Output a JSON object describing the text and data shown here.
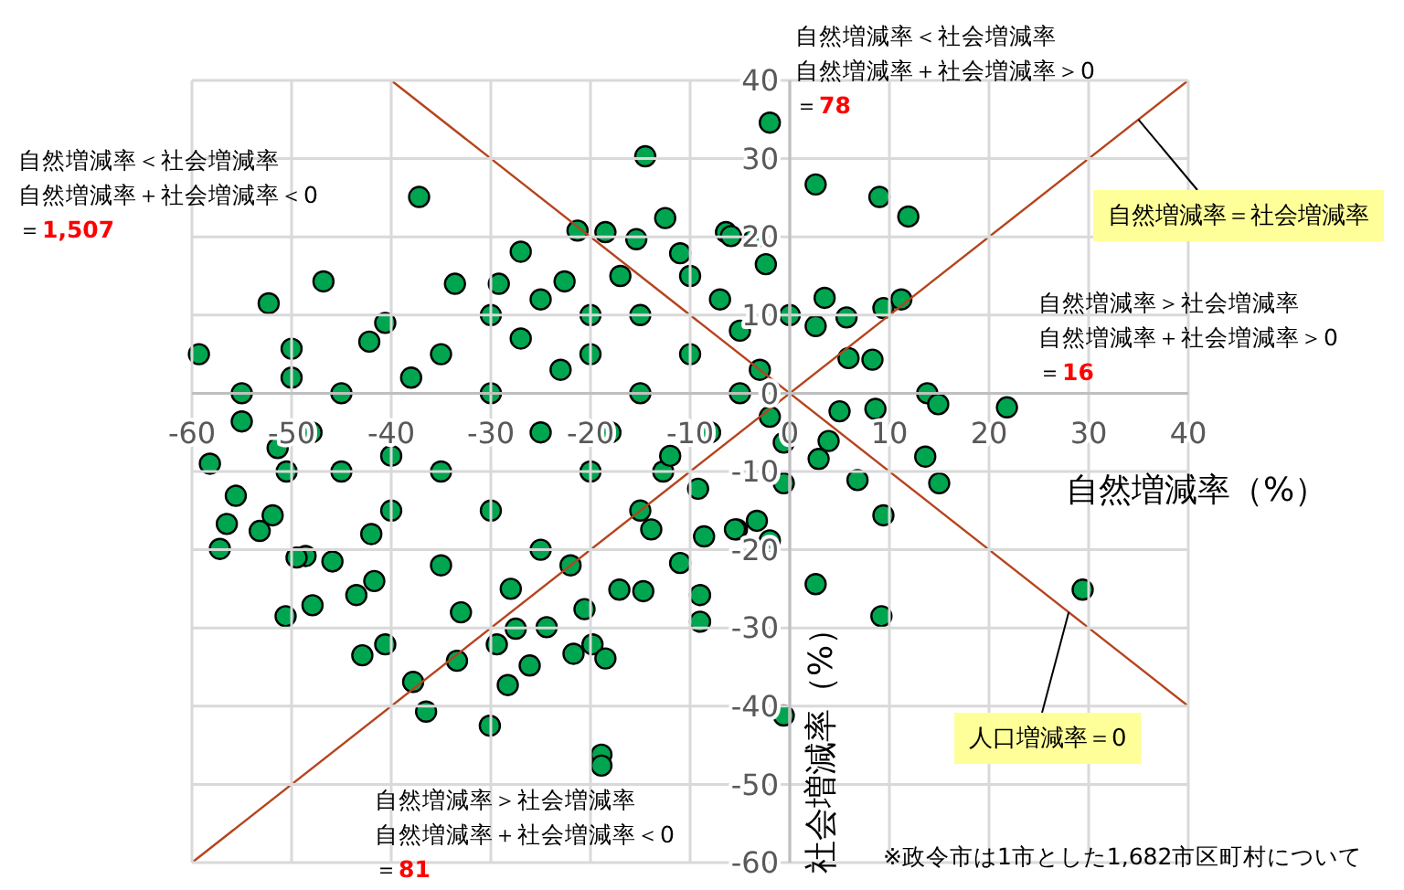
{
  "chart_data": {
    "type": "scatter",
    "xlabel": "自然増減率（%）",
    "ylabel": "社会増減率（%）",
    "xlim": [
      -60,
      40
    ],
    "ylim": [
      -60,
      40
    ],
    "xticks": [
      -60,
      -50,
      -40,
      -30,
      -20,
      -10,
      0,
      10,
      20,
      30,
      40
    ],
    "yticks": [
      -60,
      -50,
      -40,
      -30,
      -20,
      -10,
      0,
      10,
      20,
      30,
      40
    ],
    "grid": true,
    "series": [
      {
        "marker": "circle",
        "color": "#00a550",
        "x": [
          -2.0,
          -14.5,
          -37.2,
          2.6,
          -12.5,
          -21.3,
          -18.5,
          -15.4,
          -27,
          -46.8,
          -52.3,
          -33.6,
          -59.3,
          -50,
          -40.6,
          -42.2,
          -6.4,
          -3.5,
          -2.4,
          -29.2,
          -22.6,
          -11,
          11.9,
          9,
          3.5,
          11.2,
          9.4,
          5.7,
          8.3,
          5.9,
          13.8,
          14.9,
          21.8,
          8.6,
          -5.9,
          2.6,
          5,
          29.4,
          9.2,
          2.6,
          -0.6,
          9.4,
          13.6,
          15,
          6.8,
          -0.6,
          -3.3,
          -5.3,
          -2,
          2.9,
          -0.6,
          3.9,
          -58.2,
          -55,
          -55.6,
          -56.5,
          -57.2,
          -53.2,
          -51.9,
          -50.6,
          -47.9,
          -48.6,
          -45.9,
          -42.9,
          -37.8,
          -36.5,
          -30.1,
          -28.3,
          -26.1,
          -21.7,
          -19.8,
          -18.5,
          -18.9,
          -18.9,
          -9,
          -9,
          -11,
          -14.7,
          -13.9,
          -8.6,
          -5.5,
          -9.2,
          -12.7,
          -40.6,
          -33.4,
          -29.4,
          -24.4,
          -27.5,
          -20.6,
          -17.1,
          -43.5,
          -41.7,
          -49.5,
          -50.5,
          -51.4,
          -45,
          -40,
          -35,
          -30,
          -25,
          -20,
          -15,
          -10,
          -35,
          -30,
          -25,
          -20,
          -15,
          -40,
          -45,
          -30,
          -20,
          -25,
          -15,
          -10,
          -5,
          -5,
          -8,
          -38,
          -28,
          -35,
          -22,
          -18,
          -12,
          -42,
          -48,
          -33,
          -23,
          -27,
          -17,
          -7,
          -3,
          0,
          -2,
          -50,
          -55
        ],
        "values": [
          34.6,
          30.3,
          25.1,
          26.7,
          22.4,
          20.8,
          20.6,
          19.7,
          18.1,
          14.3,
          11.5,
          14,
          5,
          5.7,
          9,
          6.6,
          20.6,
          19.9,
          16.5,
          14,
          14.3,
          17.9,
          22.6,
          25.1,
          12.2,
          12,
          10.9,
          9.7,
          4.3,
          4.5,
          0,
          -1.4,
          -1.8,
          -2,
          20.1,
          8.6,
          -2.3,
          -25.1,
          -28.5,
          -24.4,
          -41.2,
          -15.6,
          -8.1,
          -11.5,
          -11.1,
          -11.5,
          -16.3,
          -17.4,
          -18.8,
          -8.4,
          -6.3,
          -6.1,
          -9,
          -3.6,
          -13.1,
          -16.7,
          -19.9,
          -17.6,
          -15.6,
          -28.5,
          -27.1,
          -20.8,
          -21.5,
          -33.5,
          -36.9,
          -40.7,
          -42.5,
          -37.3,
          -34.8,
          -33.3,
          -32.1,
          -33.9,
          -46.2,
          -47.6,
          -25.8,
          -29.2,
          -21.7,
          -25.3,
          -17.4,
          -18.3,
          -17.4,
          -12.2,
          -10,
          -32.1,
          -34.2,
          -32.1,
          -29.9,
          -30.1,
          -27.6,
          -25.1,
          -25.8,
          -24,
          -21,
          -10,
          -7,
          0,
          -8,
          5,
          0,
          -5,
          5,
          0,
          5,
          -10,
          -15,
          -20,
          -10,
          -15,
          -15,
          -10,
          10,
          10,
          12,
          10,
          15,
          8,
          0,
          -5,
          2,
          -25,
          -22,
          -22,
          -5,
          -8,
          -18,
          -5,
          -28,
          3,
          7,
          15,
          12,
          3,
          10,
          -3,
          2,
          0
        ]
      },
      {
        "type": "line",
        "color": "#b5441e",
        "x": [
          -60,
          40
        ],
        "values": [
          -60,
          40
        ]
      },
      {
        "type": "line",
        "color": "#b5441e",
        "x": [
          -40,
          40
        ],
        "values": [
          40,
          -40
        ]
      }
    ],
    "annotations": [
      "自然増減率＜社会増減率",
      "自然増減率＋社会増減率＞0",
      "＝78",
      "自然増減率＜社会増減率",
      "自然増減率＋社会増減率＜0",
      "＝1,507",
      "自然増減率＞社会増減率",
      "自然増減率＋社会増減率＞0",
      "＝16",
      "自然増減率＞社会増減率",
      "自然増減率＋社会増減率＜0",
      "＝81",
      {
        "text": "自然増減率＝社会増減率",
        "x": 35,
        "y": 35
      },
      {
        "text": "人口増減率＝0",
        "x": 28,
        "y": -28
      },
      "※政令市は1市とした1,682市区町村について"
    ]
  }
}
